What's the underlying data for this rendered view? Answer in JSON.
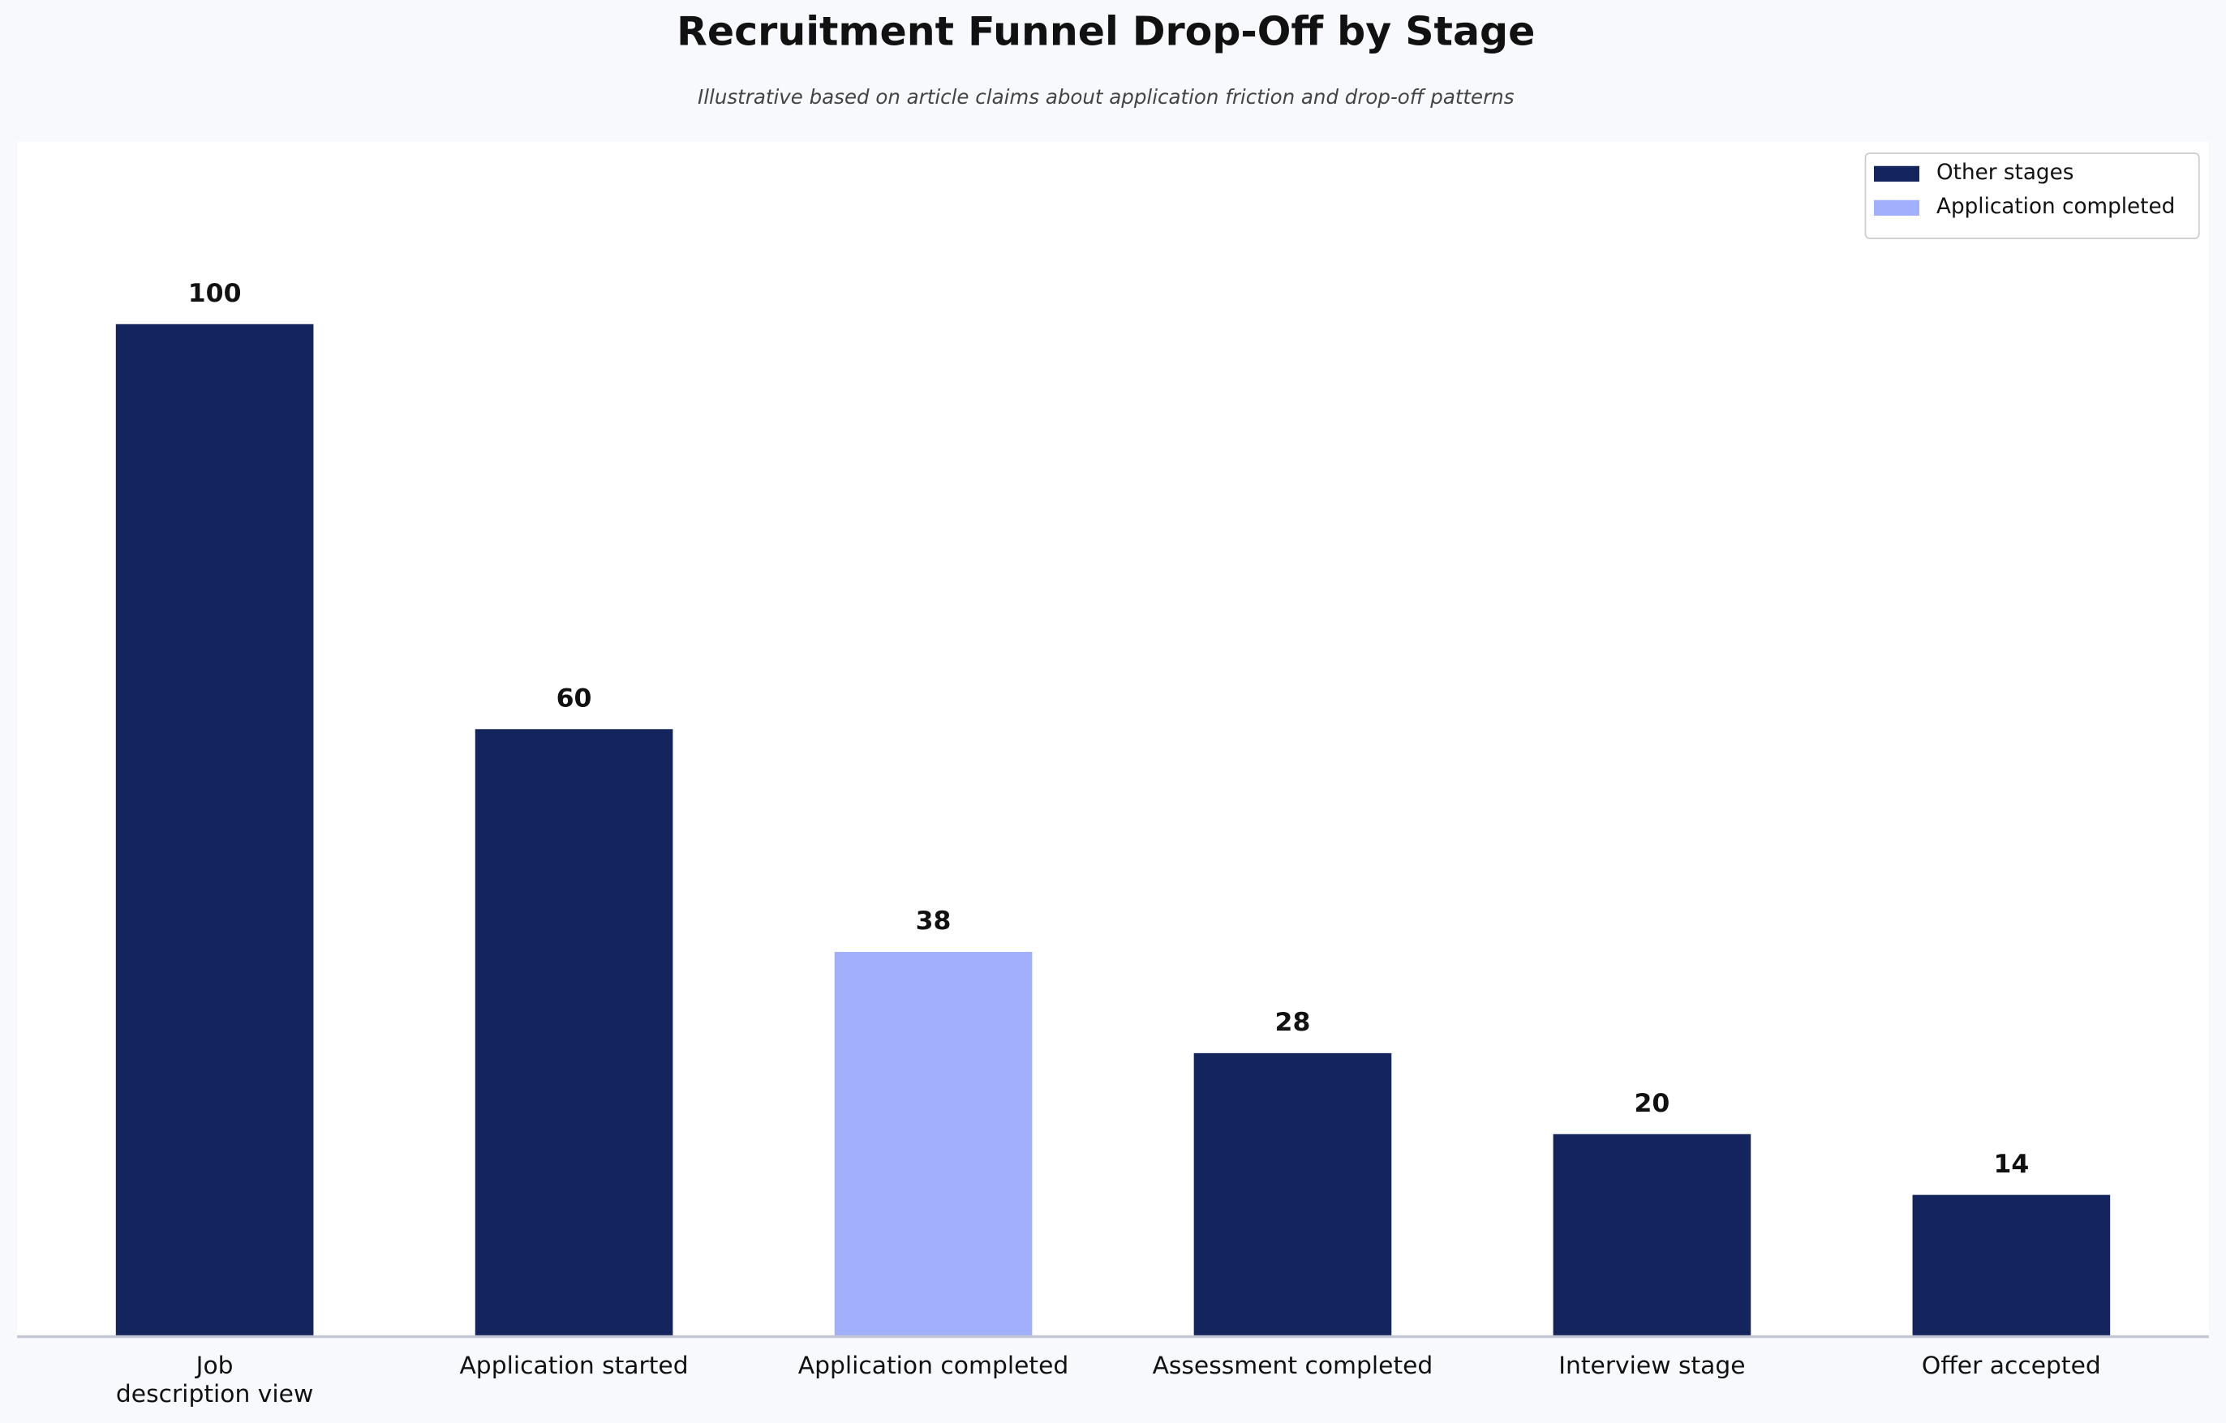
{
  "chart_data": {
    "type": "bar",
    "title": "Recruitment Funnel Drop-Off by Stage",
    "subtitle": "Illustrative based on article claims about application friction and drop-off patterns",
    "categories": [
      "Job\ndescription view",
      "Application started",
      "Application completed",
      "Assessment completed",
      "Interview stage",
      "Offer accepted"
    ],
    "values": [
      100,
      60,
      38,
      28,
      20,
      14
    ],
    "colors": [
      "#14245c",
      "#14245c",
      "#a0b0fc",
      "#14245c",
      "#14245c",
      "#14245c"
    ],
    "ylim": [
      0,
      118
    ],
    "grid": false,
    "legend": {
      "loc": "upper right",
      "items": [
        {
          "name": "Other stages",
          "color": "#14245c"
        },
        {
          "name": "Application completed",
          "color": "#a0b0fc"
        }
      ]
    }
  }
}
